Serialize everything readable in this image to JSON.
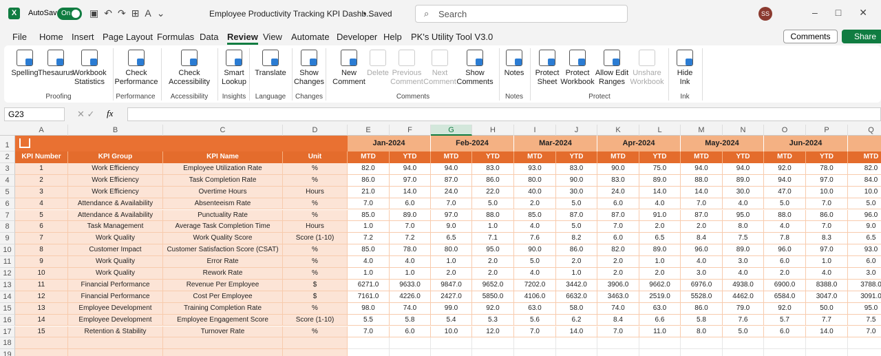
{
  "titlebar": {
    "autosave": "AutoSave",
    "toggle": "On",
    "filename": "Employee Productivity Tracking KPI Dashb...",
    "status": "• Saved",
    "search": "Search",
    "user": "SS"
  },
  "tabs": [
    "File",
    "Home",
    "Insert",
    "Page Layout",
    "Formulas",
    "Data",
    "Review",
    "View",
    "Automate",
    "Developer",
    "Help",
    "PK's Utility Tool V3.0"
  ],
  "active_tab": "Review",
  "actions": {
    "comments": "Comments",
    "share": "Share"
  },
  "ribbon": [
    {
      "group": "Proofing",
      "buttons": [
        {
          "lines": [
            "Spelling"
          ],
          "icon": "abc"
        },
        {
          "lines": [
            "Thesaurus"
          ]
        },
        {
          "lines": [
            "Workbook",
            "Statistics"
          ],
          "icon": "123"
        }
      ]
    },
    {
      "group": "Performance",
      "buttons": [
        {
          "lines": [
            "Check",
            "Performance"
          ]
        }
      ]
    },
    {
      "group": "Accessibility",
      "buttons": [
        {
          "lines": [
            "Check",
            "Accessibility"
          ],
          "dropdown": true
        }
      ]
    },
    {
      "group": "Insights",
      "buttons": [
        {
          "lines": [
            "Smart",
            "Lookup"
          ]
        }
      ]
    },
    {
      "group": "Language",
      "buttons": [
        {
          "lines": [
            "Translate"
          ]
        }
      ]
    },
    {
      "group": "Changes",
      "buttons": [
        {
          "lines": [
            "Show",
            "Changes"
          ]
        }
      ]
    },
    {
      "group": "Comments",
      "buttons": [
        {
          "lines": [
            "New",
            "Comment"
          ]
        },
        {
          "lines": [
            "Delete"
          ],
          "disabled": true
        },
        {
          "lines": [
            "Previous",
            "Comment"
          ],
          "disabled": true
        },
        {
          "lines": [
            "Next",
            "Comment"
          ],
          "disabled": true
        },
        {
          "lines": [
            "Show",
            "Comments"
          ]
        }
      ]
    },
    {
      "group": "Notes",
      "buttons": [
        {
          "lines": [
            "Notes"
          ],
          "dropdown": true
        }
      ]
    },
    {
      "group": "Protect",
      "buttons": [
        {
          "lines": [
            "Protect",
            "Sheet"
          ]
        },
        {
          "lines": [
            "Protect",
            "Workbook"
          ]
        },
        {
          "lines": [
            "Allow Edit",
            "Ranges"
          ]
        },
        {
          "lines": [
            "Unshare",
            "Workbook"
          ],
          "disabled": true
        }
      ]
    },
    {
      "group": "Ink",
      "buttons": [
        {
          "lines": [
            "Hide",
            "Ink"
          ],
          "dropdown": true
        }
      ]
    }
  ],
  "formula_bar": {
    "name_box": "G23",
    "fx": "fx"
  },
  "sheet": {
    "columns": [
      "A",
      "B",
      "C",
      "D",
      "E",
      "F",
      "G",
      "H",
      "I",
      "J",
      "K",
      "L",
      "M",
      "N",
      "O",
      "P",
      "Q"
    ],
    "selected_column": "G",
    "row_numbers": [
      "1",
      "2",
      "3",
      "4",
      "5",
      "6",
      "7",
      "8",
      "9",
      "10",
      "11",
      "12",
      "13",
      "14",
      "15",
      "16",
      "17",
      "18",
      "19"
    ],
    "headers": [
      "KPI Number",
      "KPI Group",
      "KPI Name",
      "Unit"
    ],
    "months": [
      "Jan-2024",
      "Feb-2024",
      "Mar-2024",
      "Apr-2024",
      "May-2024",
      "Jun-2024"
    ],
    "sub_headers": [
      "MTD",
      "YTD",
      "MTD",
      "YTD",
      "MTD",
      "YTD",
      "MTD",
      "YTD",
      "MTD",
      "YTD",
      "MTD",
      "YTD",
      "MTD"
    ],
    "rows": [
      [
        "1",
        "Work Efficiency",
        "Employee Utilization Rate",
        "%",
        "82.0",
        "94.0",
        "94.0",
        "83.0",
        "93.0",
        "83.0",
        "90.0",
        "75.0",
        "94.0",
        "94.0",
        "92.0",
        "78.0",
        "82.0"
      ],
      [
        "2",
        "Work Efficiency",
        "Task Completion Rate",
        "%",
        "86.0",
        "97.0",
        "87.0",
        "86.0",
        "80.0",
        "90.0",
        "83.0",
        "89.0",
        "88.0",
        "89.0",
        "94.0",
        "97.0",
        "84.0"
      ],
      [
        "3",
        "Work Efficiency",
        "Overtime Hours",
        "Hours",
        "21.0",
        "14.0",
        "24.0",
        "22.0",
        "40.0",
        "30.0",
        "24.0",
        "14.0",
        "14.0",
        "30.0",
        "47.0",
        "10.0",
        "10.0"
      ],
      [
        "4",
        "Attendance & Availability",
        "Absenteeism Rate",
        "%",
        "7.0",
        "6.0",
        "7.0",
        "5.0",
        "2.0",
        "5.0",
        "6.0",
        "4.0",
        "7.0",
        "4.0",
        "5.0",
        "7.0",
        "5.0"
      ],
      [
        "5",
        "Attendance & Availability",
        "Punctuality Rate",
        "%",
        "85.0",
        "89.0",
        "97.0",
        "88.0",
        "85.0",
        "87.0",
        "87.0",
        "91.0",
        "87.0",
        "95.0",
        "88.0",
        "86.0",
        "96.0"
      ],
      [
        "6",
        "Task Management",
        "Average Task Completion Time",
        "Hours",
        "1.0",
        "7.0",
        "9.0",
        "1.0",
        "4.0",
        "5.0",
        "7.0",
        "2.0",
        "2.0",
        "8.0",
        "4.0",
        "7.0",
        "9.0"
      ],
      [
        "7",
        "Work Quality",
        "Work Quality Score",
        "Score (1-10)",
        "7.2",
        "7.2",
        "6.5",
        "7.1",
        "7.6",
        "8.2",
        "6.0",
        "6.5",
        "8.4",
        "7.5",
        "7.8",
        "8.3",
        "6.5"
      ],
      [
        "8",
        "Customer Impact",
        "Customer Satisfaction Score (CSAT)",
        "%",
        "85.0",
        "78.0",
        "80.0",
        "95.0",
        "90.0",
        "86.0",
        "82.0",
        "89.0",
        "96.0",
        "89.0",
        "96.0",
        "97.0",
        "93.0"
      ],
      [
        "9",
        "Work Quality",
        "Error Rate",
        "%",
        "4.0",
        "4.0",
        "1.0",
        "2.0",
        "5.0",
        "2.0",
        "2.0",
        "1.0",
        "4.0",
        "3.0",
        "6.0",
        "1.0",
        "6.0"
      ],
      [
        "10",
        "Work Quality",
        "Rework Rate",
        "%",
        "1.0",
        "1.0",
        "2.0",
        "2.0",
        "4.0",
        "1.0",
        "2.0",
        "2.0",
        "3.0",
        "4.0",
        "2.0",
        "4.0",
        "3.0"
      ],
      [
        "11",
        "Financial Performance",
        "Revenue Per Employee",
        "$",
        "6271.0",
        "9633.0",
        "9847.0",
        "9652.0",
        "7202.0",
        "3442.0",
        "3906.0",
        "9662.0",
        "6976.0",
        "4938.0",
        "6900.0",
        "8388.0",
        "3788.0"
      ],
      [
        "12",
        "Financial Performance",
        "Cost Per Employee",
        "$",
        "7161.0",
        "4226.0",
        "2427.0",
        "5850.0",
        "4106.0",
        "6632.0",
        "3463.0",
        "2519.0",
        "5528.0",
        "4462.0",
        "6584.0",
        "3047.0",
        "3091.0"
      ],
      [
        "13",
        "Employee Development",
        "Training Completion Rate",
        "%",
        "98.0",
        "74.0",
        "99.0",
        "92.0",
        "63.0",
        "58.0",
        "74.0",
        "63.0",
        "86.0",
        "79.0",
        "92.0",
        "50.0",
        "95.0"
      ],
      [
        "14",
        "Employee Development",
        "Employee Engagement Score",
        "Score (1-10)",
        "5.5",
        "5.8",
        "5.4",
        "5.3",
        "5.6",
        "6.2",
        "8.4",
        "6.6",
        "5.8",
        "7.6",
        "5.7",
        "7.7",
        "7.5"
      ],
      [
        "15",
        "Retention & Stability",
        "Turnover Rate",
        "%",
        "7.0",
        "6.0",
        "10.0",
        "12.0",
        "7.0",
        "14.0",
        "7.0",
        "11.0",
        "8.0",
        "5.0",
        "6.0",
        "14.0",
        "7.0"
      ]
    ]
  }
}
